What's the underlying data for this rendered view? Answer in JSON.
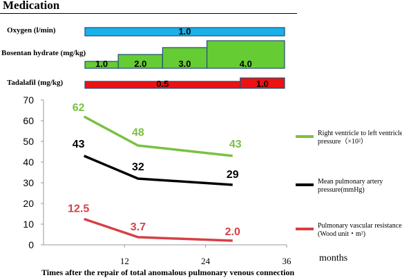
{
  "header": {
    "title": "Medication"
  },
  "medications": [
    {
      "label": "Oxygen (l/min)",
      "color": "#1ab0e8",
      "segments": [
        {
          "start": 0,
          "end": 36,
          "value": "1.0",
          "height": 1
        }
      ]
    },
    {
      "label": "Bosentan hydrate (mg/kg)",
      "color": "#66cc33",
      "segments": [
        {
          "start": 0,
          "end": 6,
          "value": "1.0",
          "height": 1
        },
        {
          "start": 6,
          "end": 14,
          "value": "2.0",
          "height": 2
        },
        {
          "start": 14,
          "end": 22,
          "value": "3.0",
          "height": 3
        },
        {
          "start": 22,
          "end": 36,
          "value": "4.0",
          "height": 4
        }
      ]
    },
    {
      "label": "Tadalafil (mg/kg)",
      "color": "#ee1111",
      "segments": [
        {
          "start": 0,
          "end": 28,
          "value": "0.5",
          "height": 1
        },
        {
          "start": 28,
          "end": 36,
          "value": "1.0",
          "height": 1.5
        }
      ]
    }
  ],
  "chart_data": {
    "type": "line",
    "x": [
      6,
      14,
      28
    ],
    "xlim": [
      0,
      36
    ],
    "ylim": [
      0,
      70
    ],
    "xticks": [
      "12",
      "24",
      "36"
    ],
    "xtick_values": [
      12,
      24,
      36
    ],
    "yticks": [
      "0",
      "10",
      "20",
      "30",
      "40",
      "50",
      "60",
      "70"
    ],
    "ytick_values": [
      0,
      10,
      20,
      30,
      40,
      50,
      60,
      70
    ],
    "xlabel": "Times after the repair of total anomalous pulmonary venous connection",
    "xunit": "months",
    "ylabel": "",
    "grid": false,
    "legend_position": "right",
    "series": [
      {
        "name": "Right ventricle to left ventricle pressure（×10²）",
        "color": "#7ac142",
        "values": [
          62,
          48,
          43
        ],
        "labels": [
          "62",
          "48",
          "43"
        ]
      },
      {
        "name": "Mean pulmonary artery pressure(mmHg)",
        "color": "#000000",
        "values": [
          43,
          32,
          29
        ],
        "labels": [
          "43",
          "32",
          "29"
        ]
      },
      {
        "name": "Pulmonary vascular resistance (Wood unit・m²)",
        "color": "#d64045",
        "values": [
          12.5,
          3.7,
          2.0
        ],
        "labels": [
          "12.5",
          "3.7",
          "2.0"
        ]
      }
    ]
  }
}
